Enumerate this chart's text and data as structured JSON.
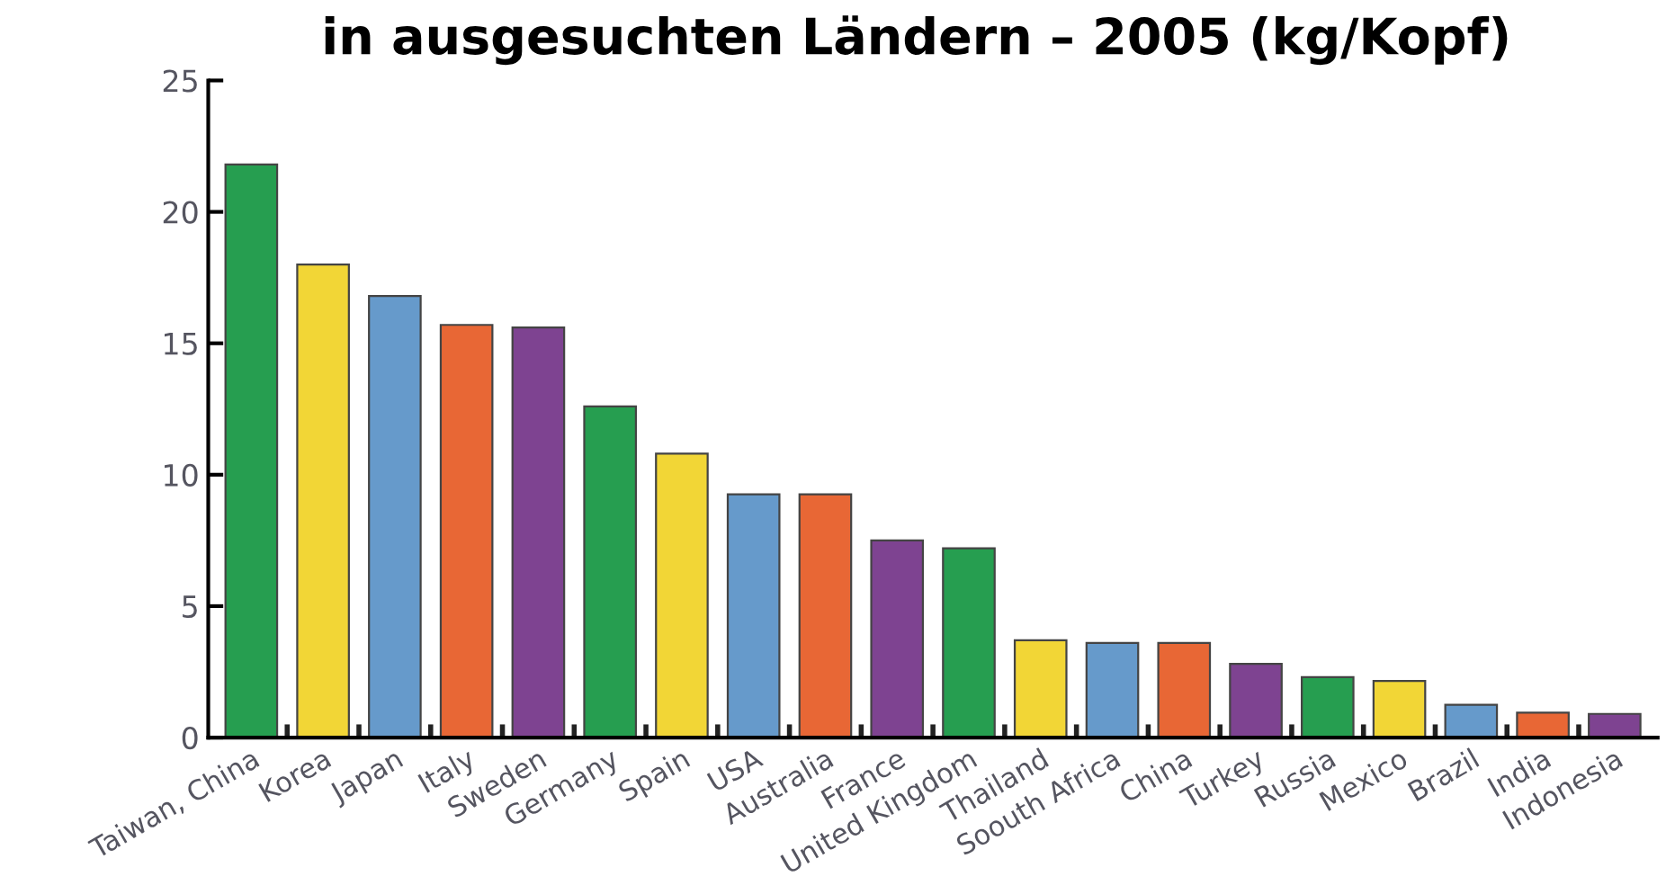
{
  "chart_data": {
    "type": "bar",
    "title": "in ausgesuchten Ländern – 2005 (kg/Kopf)",
    "categories": [
      "Taiwan, China",
      "Korea",
      "Japan",
      "Italy",
      "Sweden",
      "Germany",
      "Spain",
      "USA",
      "Australia",
      "France",
      "United Kingdom",
      "Thailand",
      "Soouth Africa",
      "China",
      "Turkey",
      "Russia",
      "Mexico",
      "Brazil",
      "India",
      "Indonesia"
    ],
    "values": [
      21.8,
      18.0,
      16.8,
      15.7,
      15.6,
      12.6,
      10.8,
      9.25,
      9.25,
      7.5,
      7.2,
      3.7,
      3.6,
      3.6,
      2.8,
      2.3,
      2.15,
      1.25,
      0.95,
      0.9
    ],
    "colors": [
      "#269e50",
      "#f2d636",
      "#669acb",
      "#e86735",
      "#7e4391",
      "#269e50",
      "#f2d636",
      "#669acb",
      "#e86735",
      "#7e4391",
      "#269e50",
      "#f2d636",
      "#669acb",
      "#e86735",
      "#7e4391",
      "#269e50",
      "#f2d636",
      "#669acb",
      "#e86735",
      "#7e4391"
    ],
    "ylim": [
      0,
      25
    ],
    "yticks": [
      0,
      5,
      10,
      15,
      20,
      25
    ],
    "grid": false,
    "legend": false
  }
}
